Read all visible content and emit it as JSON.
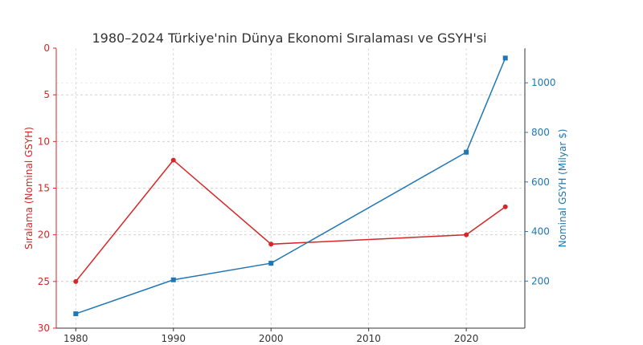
{
  "chart_data": {
    "type": "line",
    "title": "1980–2024 Türkiye'nin Dünya Ekonomi Sıralaması ve GSYH'si",
    "xlabel": "",
    "x": [
      1980,
      1990,
      2000,
      2020,
      2024
    ],
    "x_ticks": [
      "1980",
      "1990",
      "2000",
      "2010",
      "2020"
    ],
    "xlim": [
      1978,
      2026
    ],
    "grid": true,
    "left_axis": {
      "label": "Sıralama (Nominal GSYH)",
      "inverted": true,
      "ylim": [
        0,
        30
      ],
      "ticks": [
        "0",
        "5",
        "10",
        "15",
        "20",
        "25",
        "30"
      ],
      "color": "#d62728"
    },
    "right_axis": {
      "label": "Nominal GSYH (Milyar $)",
      "ylim": [
        10,
        1140
      ],
      "ticks": [
        "200",
        "400",
        "600",
        "800",
        "1000"
      ],
      "color": "#1f77b4"
    },
    "series": [
      {
        "axis": "left",
        "color": "#d62728",
        "marker": "circle",
        "values": [
          25,
          12,
          21,
          20,
          17
        ]
      },
      {
        "axis": "right",
        "color": "#1f77b4",
        "marker": "square",
        "values": [
          68,
          205,
          272,
          720,
          1100
        ]
      }
    ]
  }
}
